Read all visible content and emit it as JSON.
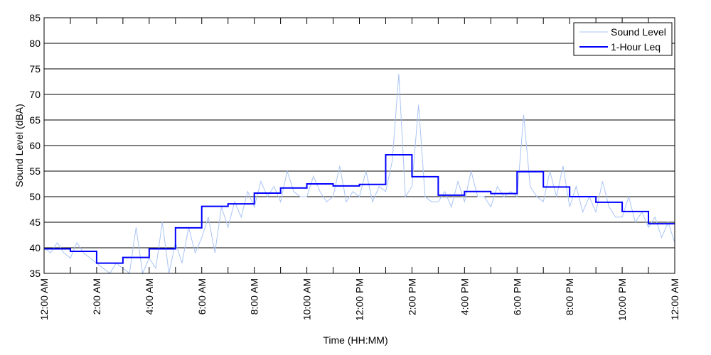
{
  "chart_data": {
    "type": "line",
    "title": "",
    "xlabel": "Time (HH:MM)",
    "ylabel": "Sound Level (dBA)",
    "ylim": [
      35,
      85
    ],
    "xlim_hours": [
      0,
      24
    ],
    "yticks": [
      35,
      40,
      45,
      50,
      55,
      60,
      65,
      70,
      75,
      80,
      85
    ],
    "xtick_labels": [
      "12:00 AM",
      "2:00 AM",
      "4:00 AM",
      "6:00 AM",
      "8:00 AM",
      "10:00 AM",
      "12:00 PM",
      "2:00 PM",
      "4:00 PM",
      "6:00 PM",
      "8:00 PM",
      "10:00 PM",
      "12:00 AM"
    ],
    "grid": "horizontal",
    "legend_position": "top-right",
    "series": [
      {
        "name": "Sound Level",
        "color": "#a9c4f5",
        "interval_hours": 0.25,
        "values": [
          40,
          39,
          41,
          39,
          38,
          41,
          39,
          38,
          37,
          36,
          35,
          37,
          36,
          35,
          44,
          34,
          38,
          36,
          45,
          35,
          41,
          37,
          44,
          39,
          42,
          46,
          39,
          48,
          44,
          49,
          46,
          51,
          48,
          53,
          50,
          52,
          49,
          55,
          51,
          50,
          50,
          54,
          51,
          49,
          50,
          56,
          49,
          51,
          50,
          55,
          49,
          52,
          51,
          57,
          74,
          50,
          52,
          68,
          50,
          49,
          49,
          51,
          48,
          53,
          49,
          55,
          50,
          50,
          48,
          52,
          50,
          51,
          50,
          66,
          52,
          50,
          49,
          55,
          50,
          56,
          48,
          52,
          47,
          50,
          47,
          53,
          48,
          46,
          46,
          50,
          45,
          47,
          44,
          46,
          42,
          45,
          41
        ]
      },
      {
        "name": "1-Hour Leq",
        "color": "#0000ff",
        "interval_hours": 1,
        "values": [
          39.8,
          39.3,
          37.0,
          38.1,
          39.8,
          43.9,
          48.1,
          48.6,
          50.7,
          51.7,
          52.5,
          52.1,
          52.4,
          58.2,
          53.9,
          50.3,
          51.0,
          50.6,
          54.9,
          51.9,
          50.0,
          48.9,
          47.1,
          44.7
        ]
      }
    ]
  }
}
